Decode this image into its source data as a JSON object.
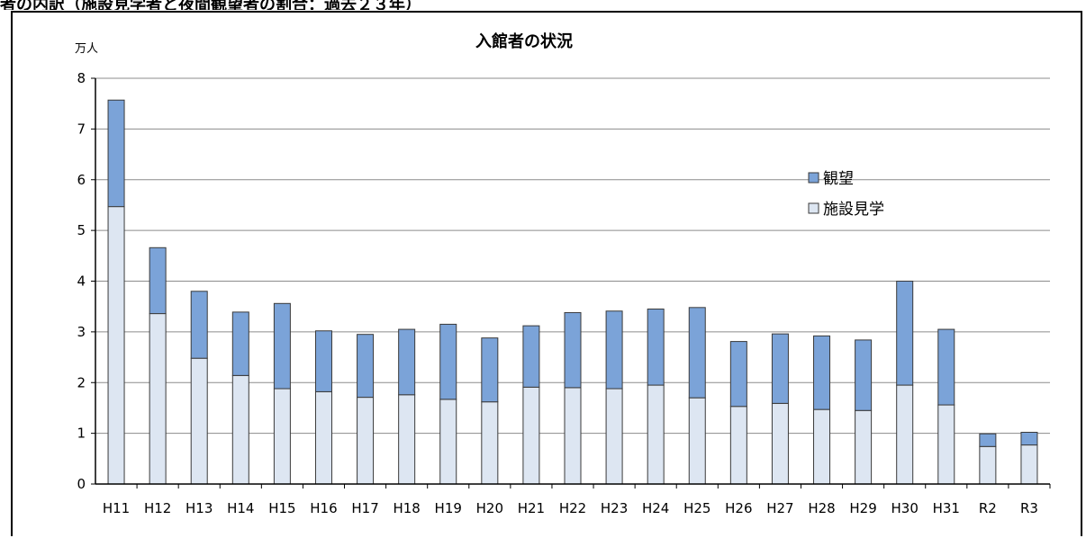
{
  "page": {
    "caption": "者の内訳（施設見学者と夜間観望者の割合：過去２３年）"
  },
  "chart_data": {
    "type": "bar",
    "stacked": true,
    "title": "入館者の状況",
    "ylabel": "万人",
    "xlabel": "",
    "ylim": [
      0,
      8
    ],
    "yticks": [
      0,
      1,
      2,
      3,
      4,
      5,
      6,
      7,
      8
    ],
    "grid": true,
    "legend_position": "right",
    "categories": [
      "H11",
      "H12",
      "H13",
      "H14",
      "H15",
      "H16",
      "H17",
      "H18",
      "H19",
      "H20",
      "H21",
      "H22",
      "H23",
      "H24",
      "H25",
      "H26",
      "H27",
      "H28",
      "H29",
      "H30",
      "H31",
      "R2",
      "R3"
    ],
    "series": [
      {
        "name": "施設見学",
        "color": "#dde6f2",
        "values": [
          5.47,
          3.36,
          2.48,
          2.14,
          1.88,
          1.82,
          1.71,
          1.76,
          1.67,
          1.62,
          1.91,
          1.9,
          1.88,
          1.95,
          1.7,
          1.53,
          1.59,
          1.47,
          1.45,
          1.95,
          1.56,
          0.74,
          0.77
        ]
      },
      {
        "name": "観望",
        "color": "#7ba3d8",
        "values": [
          2.1,
          1.3,
          1.32,
          1.25,
          1.68,
          1.2,
          1.24,
          1.29,
          1.48,
          1.26,
          1.21,
          1.48,
          1.53,
          1.5,
          1.78,
          1.28,
          1.37,
          1.45,
          1.39,
          2.05,
          1.49,
          0.25,
          0.25
        ]
      }
    ],
    "legend": [
      {
        "name": "観望",
        "color": "#7ba3d8"
      },
      {
        "name": "施設見学",
        "color": "#dde6f2"
      }
    ]
  }
}
